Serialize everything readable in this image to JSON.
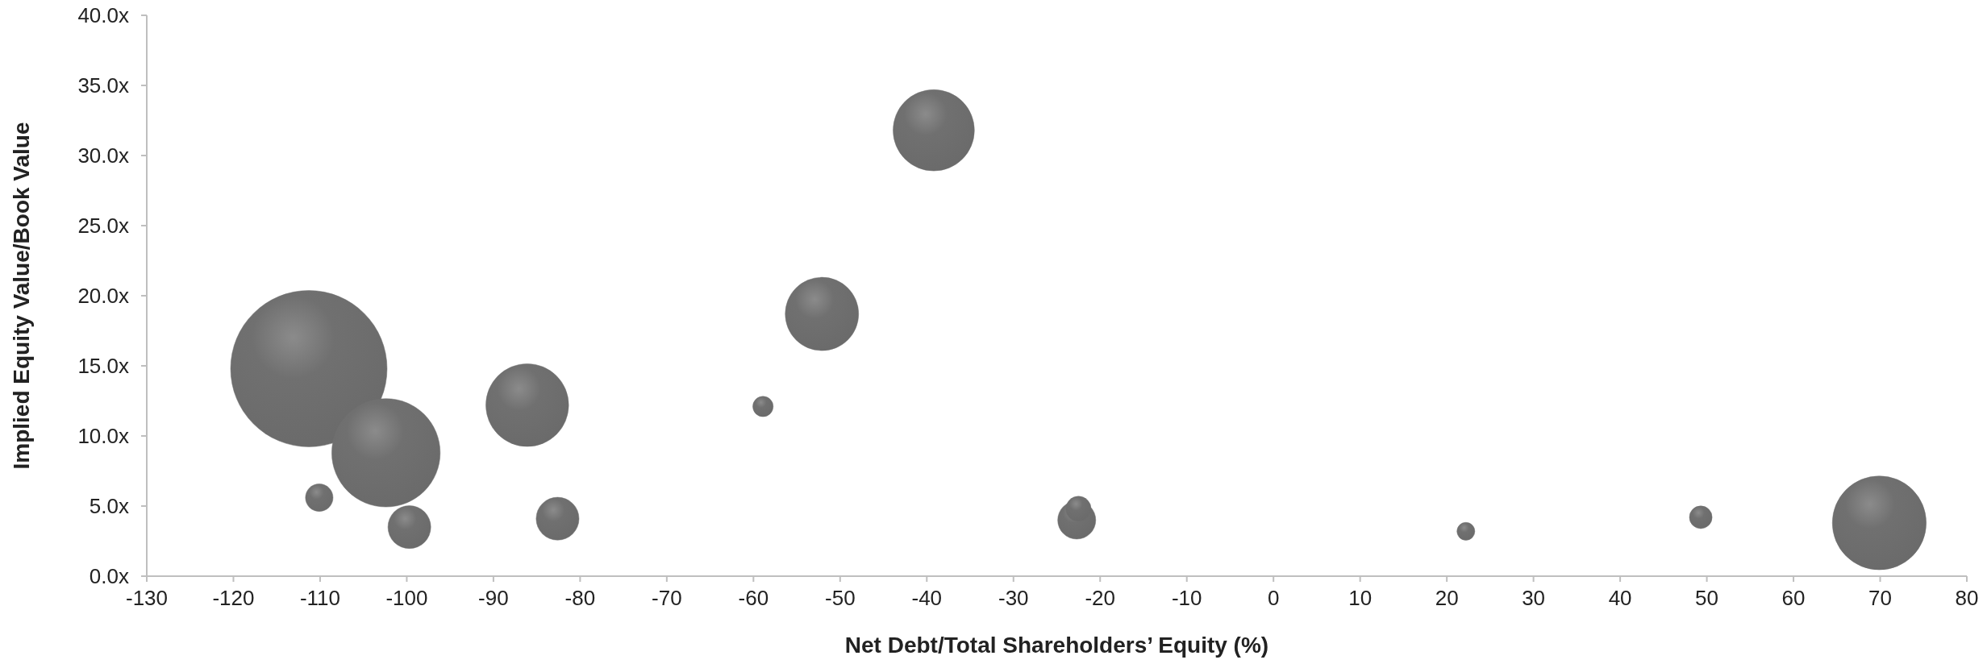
{
  "chart_data": {
    "type": "bubble",
    "xlabel": "Net Debt/Total Shareholders’ Equity (%)",
    "ylabel": "Implied Equity Value/Book Value",
    "x": [
      -111.3,
      -102.4,
      -110.1,
      -99.7,
      -86.1,
      -82.6,
      -58.9,
      -52.1,
      -39.2,
      -22.7,
      -22.5,
      22.2,
      49.3,
      69.9
    ],
    "series": [
      {
        "color": "#707070",
        "values": [
          14.8,
          8.8,
          5.6,
          3.5,
          12.2,
          4.1,
          12.1,
          18.7,
          31.8,
          4.0,
          4.8,
          3.2,
          4.2,
          3.8
        ],
        "sizes": [
          1,
          0.48,
          0.031,
          0.075,
          0.28,
          0.075,
          0.017,
          0.22,
          0.27,
          0.059,
          0.026,
          0.013,
          0.021,
          0.36
        ]
      }
    ],
    "xlim": [
      -130,
      80
    ],
    "xticks": [
      -130,
      -120,
      -110,
      -100,
      -90,
      -80,
      -70,
      -60,
      -50,
      -40,
      -30,
      -20,
      -10,
      0,
      10,
      20,
      30,
      40,
      50,
      60,
      70,
      80
    ],
    "ylim": [
      0,
      40
    ],
    "yticks": [
      {
        "value": 0,
        "label": "0.0x"
      },
      {
        "value": 5,
        "label": "5.0x"
      },
      {
        "value": 10,
        "label": "10.0x"
      },
      {
        "value": 15,
        "label": "15.0x"
      },
      {
        "value": 20,
        "label": "20.0x"
      },
      {
        "value": 25,
        "label": "25.0x"
      },
      {
        "value": 30,
        "label": "30.0x"
      },
      {
        "value": 35,
        "label": "35.0x"
      },
      {
        "value": 40,
        "label": "40.0x"
      }
    ],
    "grid": false
  }
}
